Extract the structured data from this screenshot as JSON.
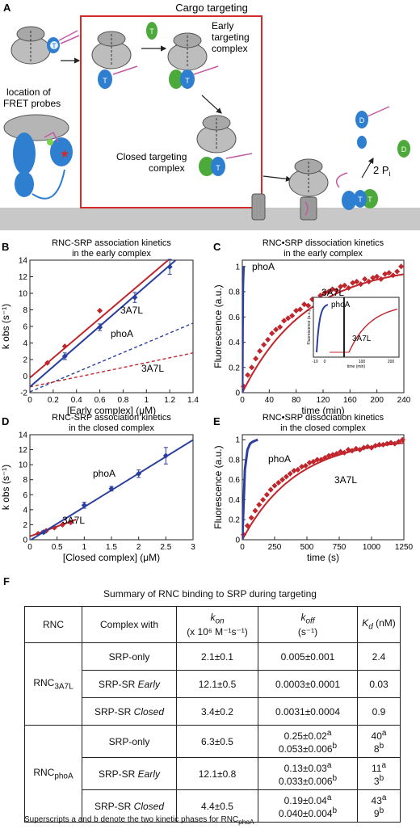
{
  "panel_a": {
    "letter": "A",
    "box_title": "Cargo targeting",
    "early_label_1": "Early",
    "early_label_2": "targeting",
    "early_label_3": "complex",
    "closed_label_1": "Closed targeting",
    "closed_label_2": "complex",
    "fret_label_1": "location of",
    "fret_label_2": "FRET probes",
    "pi_label": "2 P",
    "pi_sub": "i",
    "letter_t": "T",
    "letter_d": "D"
  },
  "chart_data": [
    {
      "panel": "B",
      "type": "line",
      "title": "RNC-SRP association kinetics",
      "subtitle": "in the early complex",
      "xlabel": "[Early complex] (μM)",
      "ylabel": "k obs (s⁻¹)",
      "xlim": [
        0,
        1.4
      ],
      "ylim": [
        -2,
        14
      ],
      "xticks": [
        "0",
        "0.2",
        "0.4",
        "0.6",
        "0.8",
        "1",
        "1.2",
        "1.4"
      ],
      "yticks": [
        "-2",
        "0",
        "2",
        "4",
        "6",
        "8",
        "10",
        "12",
        "14"
      ],
      "series": [
        {
          "name": "3A7L",
          "color": "#c0262c",
          "x": [
            0.15,
            0.3,
            0.6
          ],
          "y": [
            1.6,
            3.6,
            7.9
          ],
          "fit": [
            [
              0,
              -0.2
            ],
            [
              1.27,
              15.0
            ]
          ]
        },
        {
          "name": "phoA",
          "color": "#2a3f9e",
          "x": [
            0.3,
            0.6,
            0.9,
            1.2
          ],
          "y": [
            2.4,
            5.9,
            9.5,
            13.2
          ],
          "err": [
            0.4,
            0.4,
            0.6,
            0.9
          ],
          "fit": [
            [
              0,
              -1.3
            ],
            [
              1.3,
              14.6
            ]
          ]
        }
      ],
      "dashed": [
        {
          "name": "phoA",
          "color": "#2a3f9e",
          "from": [
            0,
            -1.9
          ],
          "to": [
            1.4,
            6.4
          ]
        },
        {
          "name": "3A7L",
          "color": "#c0262c",
          "from": [
            0,
            -1.3
          ],
          "to": [
            1.4,
            2.8
          ]
        }
      ],
      "annotations": [
        "3A7L",
        "phoA",
        "3A7L"
      ]
    },
    {
      "panel": "C",
      "type": "scatter",
      "title": "RNC•SRP dissociation kinetics",
      "subtitle": "in the early complex",
      "xlabel": "time (min)",
      "ylabel": "Fluorescence (a.u.)",
      "xlim": [
        0,
        240
      ],
      "ylim": [
        0,
        1.05
      ],
      "xticks": [
        "0",
        "40",
        "80",
        "120",
        "160",
        "200",
        "240"
      ],
      "yticks": [
        "0",
        "0.2",
        "0.4",
        "0.6",
        "0.8",
        "1"
      ],
      "series": [
        {
          "name": "3A7L",
          "color": "#c0262c",
          "x": [
            2,
            8,
            14,
            20,
            26,
            32,
            38,
            44,
            50,
            56,
            62,
            68,
            74,
            80,
            86,
            92,
            98,
            104,
            110,
            116,
            122,
            128,
            134,
            140,
            146,
            152,
            158,
            164,
            170,
            176,
            182,
            188,
            194,
            200,
            206,
            212,
            218,
            224,
            230,
            236
          ],
          "y": [
            0.05,
            0.14,
            0.2,
            0.27,
            0.33,
            0.38,
            0.42,
            0.47,
            0.5,
            0.52,
            0.57,
            0.59,
            0.61,
            0.65,
            0.66,
            0.7,
            0.69,
            0.74,
            0.73,
            0.77,
            0.79,
            0.8,
            0.82,
            0.81,
            0.84,
            0.85,
            0.83,
            0.87,
            0.88,
            0.86,
            0.9,
            0.88,
            0.91,
            0.92,
            0.9,
            0.94,
            0.95,
            0.93,
            0.96,
            1.0
          ]
        },
        {
          "name": "phoA",
          "color": "#2a3f9e",
          "x": [
            0,
            0.5,
            1,
            1.5,
            2
          ],
          "y": [
            0.0,
            0.5,
            0.85,
            0.95,
            1.0
          ]
        }
      ],
      "annotations": [
        "phoA",
        "3A7L"
      ],
      "inset": {
        "xlabel": "time (min)",
        "ylabel": "Fluorescence (a.u.)",
        "xticks": [
          "-10",
          "0",
          "100",
          "200"
        ],
        "labels": [
          "phoA",
          "3A7L"
        ]
      }
    },
    {
      "panel": "D",
      "type": "line",
      "title": "RNC-SRP association kinetics",
      "subtitle": "in the closed complex",
      "xlabel": "[Closed complex] (μM)",
      "ylabel": "k obs (s⁻¹)",
      "xlim": [
        0,
        3
      ],
      "ylim": [
        0,
        14
      ],
      "xticks": [
        "0",
        "0.5",
        "1",
        "1.5",
        "2",
        "2.5",
        "3"
      ],
      "yticks": [
        "0",
        "2",
        "4",
        "6",
        "8",
        "10",
        "12",
        "14"
      ],
      "series": [
        {
          "name": "3A7L",
          "color": "#c0262c",
          "x": [
            0.15,
            0.3,
            0.45,
            0.6,
            0.75
          ],
          "y": [
            0.8,
            1.2,
            1.6,
            2.0,
            2.3
          ],
          "fit": [
            [
              0,
              0.45
            ],
            [
              0.85,
              2.7
            ]
          ]
        },
        {
          "name": "phoA",
          "color": "#2a3f9e",
          "x": [
            0.25,
            1.0,
            1.5,
            2.0,
            2.5
          ],
          "y": [
            1.0,
            4.6,
            6.8,
            8.8,
            11.2
          ],
          "err": [
            0.2,
            0.4,
            0.3,
            0.5,
            1.1
          ],
          "fit": [
            [
              0,
              -0.1
            ],
            [
              3,
              13.3
            ]
          ]
        }
      ],
      "annotations": [
        "phoA",
        "3A7L"
      ]
    },
    {
      "panel": "E",
      "type": "scatter",
      "title": "RNC•SRP dissociation kinetics",
      "subtitle": "in the closed complex",
      "xlabel": "time (s)",
      "ylabel": "Fluorescence (a.u.)",
      "xlim": [
        0,
        1250
      ],
      "ylim": [
        0,
        1.05
      ],
      "xticks": [
        "0",
        "250",
        "500",
        "750",
        "1000",
        "1250"
      ],
      "yticks": [
        "0",
        "0.2",
        "0.4",
        "0.6",
        "0.8",
        "1"
      ],
      "series": [
        {
          "name": "3A7L",
          "color": "#c0262c",
          "x": [
            10,
            40,
            70,
            100,
            130,
            160,
            190,
            220,
            250,
            280,
            310,
            340,
            370,
            400,
            430,
            460,
            490,
            520,
            550,
            580,
            610,
            640,
            670,
            700,
            730,
            760,
            790,
            820,
            850,
            880,
            910,
            940,
            970,
            1000,
            1030,
            1060,
            1090,
            1120,
            1150,
            1180,
            1210,
            1240
          ],
          "y": [
            0.05,
            0.14,
            0.22,
            0.29,
            0.35,
            0.4,
            0.45,
            0.5,
            0.54,
            0.57,
            0.6,
            0.63,
            0.66,
            0.69,
            0.7,
            0.73,
            0.74,
            0.77,
            0.78,
            0.8,
            0.8,
            0.82,
            0.84,
            0.85,
            0.86,
            0.88,
            0.87,
            0.9,
            0.89,
            0.91,
            0.9,
            0.92,
            0.93,
            0.92,
            0.94,
            0.95,
            0.95,
            0.96,
            0.97,
            0.96,
            0.98,
            1.0
          ]
        },
        {
          "name": "phoA",
          "color": "#2a3f9e",
          "x": [
            0,
            20,
            40,
            60,
            80,
            100,
            120
          ],
          "y": [
            0.0,
            0.7,
            0.9,
            0.96,
            0.98,
            0.99,
            1.0
          ]
        }
      ],
      "annotations": [
        "phoA",
        "3A7L"
      ]
    }
  ],
  "table": {
    "letter": "F",
    "title": "Summary of RNC binding to SRP during targeting",
    "headers": {
      "rnc": "RNC",
      "complex": "Complex with",
      "kon": "k",
      "kon_sub": "on",
      "kon_unit": "(x 10⁶ M⁻¹s⁻¹)",
      "koff": "k",
      "koff_sub": "off",
      "koff_unit": "(s⁻¹)",
      "kd": "K",
      "kd_sub": "d",
      "kd_unit": " (nM)"
    },
    "groups": [
      {
        "rnc": "RNC",
        "rnc_sub": "3A7L",
        "rows": [
          {
            "complex": "SRP-only",
            "complex_it": "",
            "kon": "2.1±0.1",
            "koff": [
              "0.005±0.001"
            ],
            "kd": [
              "2.4"
            ]
          },
          {
            "complex": "SRP-SR ",
            "complex_it": "Early",
            "kon": "12.1±0.5",
            "koff": [
              "0.0003±0.0001"
            ],
            "kd": [
              "0.03"
            ]
          },
          {
            "complex": "SRP-SR ",
            "complex_it": "Closed",
            "kon": "3.4±0.2",
            "koff": [
              "0.0031±0.0004"
            ],
            "kd": [
              "0.9"
            ]
          }
        ]
      },
      {
        "rnc": "RNC",
        "rnc_sub": "phoA",
        "rows": [
          {
            "complex": "SRP-only",
            "complex_it": "",
            "kon": "6.3±0.5",
            "koff": [
              "0.25±0.02",
              "0.053±0.006"
            ],
            "kd": [
              "40",
              "8"
            ]
          },
          {
            "complex": "SRP-SR ",
            "complex_it": "Early",
            "kon": "12.1±0.8",
            "koff": [
              "0.13±0.03",
              "0.033±0.006"
            ],
            "kd": [
              "11",
              "3"
            ]
          },
          {
            "complex": "SRP-SR ",
            "complex_it": "Closed",
            "kon": "4.4±0.5",
            "koff": [
              "0.19±0.04",
              "0.040±0.004"
            ],
            "kd": [
              "43",
              "9"
            ]
          }
        ]
      }
    ],
    "sup_a": "a",
    "sup_b": "b",
    "footnote": "Superscripts a and b denote the two kinetic phases for RNC",
    "footnote_sub": "phoA"
  }
}
